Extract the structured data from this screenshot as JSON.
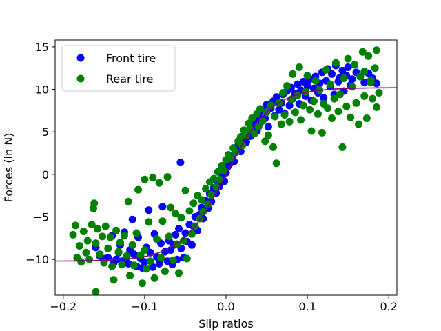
{
  "chart_data": {
    "type": "scatter",
    "title": "",
    "xlabel": "Slip ratios",
    "ylabel": "Forces (in N)",
    "xlim": [
      -0.21,
      0.21
    ],
    "ylim": [
      -14.2,
      15.8
    ],
    "xticks": [
      -0.2,
      -0.1,
      0.0,
      0.1,
      0.2
    ],
    "xtick_labels": [
      "−0.2",
      "−0.1",
      "0.0",
      "0.1",
      "0.2"
    ],
    "yticks": [
      -10,
      -5,
      0,
      5,
      10,
      15
    ],
    "ytick_labels": [
      "−10",
      "−5",
      "0",
      "5",
      "10",
      "15"
    ],
    "grid": false,
    "legend": {
      "position": "top-left"
    },
    "series": [
      {
        "name": "Front tire",
        "color": "#0000ff",
        "marker": "circle",
        "points": [
          [
            -0.16,
            -8.6
          ],
          [
            -0.155,
            -9.6
          ],
          [
            -0.15,
            -10.1
          ],
          [
            -0.148,
            -9.9
          ],
          [
            -0.145,
            -9.8
          ],
          [
            -0.14,
            -7.2
          ],
          [
            -0.138,
            -10.4
          ],
          [
            -0.135,
            -10.0
          ],
          [
            -0.132,
            -9.2
          ],
          [
            -0.13,
            -8.3
          ],
          [
            -0.128,
            -10.2
          ],
          [
            -0.125,
            -6.8
          ],
          [
            -0.122,
            -9.7
          ],
          [
            -0.12,
            -10.5
          ],
          [
            -0.118,
            -8.9
          ],
          [
            -0.115,
            -5.3
          ],
          [
            -0.113,
            -9.4
          ],
          [
            -0.11,
            -10.8
          ],
          [
            -0.108,
            -7.4
          ],
          [
            -0.105,
            -9.9
          ],
          [
            -0.103,
            -11.0
          ],
          [
            -0.1,
            -10.3
          ],
          [
            -0.098,
            -8.6
          ],
          [
            -0.095,
            -4.2
          ],
          [
            -0.093,
            -9.2
          ],
          [
            -0.09,
            -10.9
          ],
          [
            -0.088,
            -7.0
          ],
          [
            -0.085,
            -9.7
          ],
          [
            -0.082,
            -10.5
          ],
          [
            -0.08,
            -8.1
          ],
          [
            -0.078,
            -3.8
          ],
          [
            -0.075,
            -9.1
          ],
          [
            -0.072,
            -10.2
          ],
          [
            -0.07,
            -7.8
          ],
          [
            -0.068,
            -8.9
          ],
          [
            -0.066,
            -10.6
          ],
          [
            -0.064,
            -8.3
          ],
          [
            -0.062,
            -7.1
          ],
          [
            -0.06,
            -10.0
          ],
          [
            -0.058,
            -6.4
          ],
          [
            -0.056,
            1.4
          ],
          [
            -0.055,
            -8.7
          ],
          [
            -0.052,
            -9.8
          ],
          [
            -0.05,
            -6.9
          ],
          [
            -0.048,
            -7.9
          ],
          [
            -0.045,
            -5.9
          ],
          [
            -0.042,
            -8.3
          ],
          [
            -0.04,
            -6.1
          ],
          [
            -0.038,
            -5.0
          ],
          [
            -0.035,
            -6.6
          ],
          [
            -0.032,
            -4.7
          ],
          [
            -0.03,
            -3.9
          ],
          [
            -0.028,
            -5.2
          ],
          [
            -0.025,
            -3.1
          ],
          [
            -0.022,
            -4.0
          ],
          [
            -0.02,
            -2.3
          ],
          [
            -0.018,
            -3.2
          ],
          [
            -0.015,
            -1.6
          ],
          [
            -0.012,
            -2.2
          ],
          [
            -0.01,
            -0.9
          ],
          [
            -0.008,
            -1.4
          ],
          [
            -0.005,
            -0.3
          ],
          [
            -0.002,
            -0.8
          ],
          [
            0.0,
            0.2
          ],
          [
            0.002,
            0.9
          ],
          [
            0.005,
            1.3
          ],
          [
            0.008,
            2.1
          ],
          [
            0.01,
            1.5
          ],
          [
            0.012,
            2.9
          ],
          [
            0.015,
            3.4
          ],
          [
            0.018,
            2.7
          ],
          [
            0.02,
            4.1
          ],
          [
            0.022,
            4.6
          ],
          [
            0.025,
            3.8
          ],
          [
            0.028,
            5.2
          ],
          [
            0.03,
            4.5
          ],
          [
            0.032,
            5.8
          ],
          [
            0.035,
            6.4
          ],
          [
            0.038,
            5.1
          ],
          [
            0.04,
            7.0
          ],
          [
            0.042,
            6.1
          ],
          [
            0.045,
            7.5
          ],
          [
            0.048,
            6.6
          ],
          [
            0.05,
            8.2
          ],
          [
            0.052,
            5.6
          ],
          [
            0.055,
            7.8
          ],
          [
            0.058,
            8.6
          ],
          [
            0.06,
            6.9
          ],
          [
            0.062,
            9.1
          ],
          [
            0.065,
            7.6
          ],
          [
            0.068,
            8.4
          ],
          [
            0.07,
            9.4
          ],
          [
            0.072,
            7.2
          ],
          [
            0.075,
            9.8
          ],
          [
            0.078,
            8.1
          ],
          [
            0.08,
            10.2
          ],
          [
            0.082,
            8.9
          ],
          [
            0.085,
            9.5
          ],
          [
            0.088,
            10.6
          ],
          [
            0.09,
            8.3
          ],
          [
            0.092,
            9.9
          ],
          [
            0.095,
            10.9
          ],
          [
            0.098,
            9.2
          ],
          [
            0.1,
            10.4
          ],
          [
            0.103,
            11.2
          ],
          [
            0.105,
            8.7
          ],
          [
            0.108,
            10.1
          ],
          [
            0.11,
            11.5
          ],
          [
            0.113,
            9.6
          ],
          [
            0.115,
            10.7
          ],
          [
            0.118,
            12.0
          ],
          [
            0.12,
            9.0
          ],
          [
            0.123,
            11.0
          ],
          [
            0.125,
            12.4
          ],
          [
            0.128,
            10.3
          ],
          [
            0.13,
            11.8
          ],
          [
            0.133,
            9.4
          ],
          [
            0.135,
            12.8
          ],
          [
            0.138,
            10.9
          ],
          [
            0.14,
            11.4
          ],
          [
            0.143,
            12.2
          ],
          [
            0.145,
            9.8
          ],
          [
            0.148,
            11.6
          ],
          [
            0.15,
            12.6
          ],
          [
            0.153,
            10.5
          ],
          [
            0.155,
            11.2
          ],
          [
            0.16,
            12.0
          ],
          [
            0.165,
            11.5
          ],
          [
            0.17,
            10.8
          ],
          [
            0.175,
            11.9
          ],
          [
            0.18,
            11.3
          ],
          [
            0.185,
            10.7
          ]
        ]
      },
      {
        "name": "Rear tire",
        "color": "#008000",
        "marker": "circle",
        "points": [
          [
            -0.188,
            -7.1
          ],
          [
            -0.185,
            -6.0
          ],
          [
            -0.183,
            -9.8
          ],
          [
            -0.18,
            -8.4
          ],
          [
            -0.178,
            -10.3
          ],
          [
            -0.175,
            -6.7
          ],
          [
            -0.172,
            -9.2
          ],
          [
            -0.17,
            -7.8
          ],
          [
            -0.168,
            -10.0
          ],
          [
            -0.165,
            -5.9
          ],
          [
            -0.163,
            -4.0
          ],
          [
            -0.162,
            -3.4
          ],
          [
            -0.16,
            -8.1
          ],
          [
            -0.16,
            -13.8
          ],
          [
            -0.158,
            -6.4
          ],
          [
            -0.155,
            -9.4
          ],
          [
            -0.152,
            -7.3
          ],
          [
            -0.15,
            -10.4
          ],
          [
            -0.148,
            -6.1
          ],
          [
            -0.145,
            -8.7
          ],
          [
            -0.142,
            -7.4
          ],
          [
            -0.14,
            -10.8
          ],
          [
            -0.138,
            -12.4
          ],
          [
            -0.135,
            -6.6
          ],
          [
            -0.132,
            -9.1
          ],
          [
            -0.13,
            -8.0
          ],
          [
            -0.128,
            -10.6
          ],
          [
            -0.125,
            -7.2
          ],
          [
            -0.122,
            -9.6
          ],
          [
            -0.12,
            -3.2
          ],
          [
            -0.118,
            -11.9
          ],
          [
            -0.115,
            -8.3
          ],
          [
            -0.113,
            -10.7
          ],
          [
            -0.11,
            -6.9
          ],
          [
            -0.108,
            -1.8
          ],
          [
            -0.105,
            -9.5
          ],
          [
            -0.103,
            -12.8
          ],
          [
            -0.1,
            -0.6
          ],
          [
            -0.1,
            -8.9
          ],
          [
            -0.098,
            -11.1
          ],
          [
            -0.095,
            -5.6
          ],
          [
            -0.093,
            -10.2
          ],
          [
            -0.09,
            -0.4
          ],
          [
            -0.088,
            -12.2
          ],
          [
            -0.085,
            -7.6
          ],
          [
            -0.082,
            -1.0
          ],
          [
            -0.08,
            -9.8
          ],
          [
            -0.078,
            -5.5
          ],
          [
            -0.075,
            -11.4
          ],
          [
            -0.072,
            -0.3
          ],
          [
            -0.07,
            -7.3
          ],
          [
            -0.068,
            -3.9
          ],
          [
            -0.065,
            -10.1
          ],
          [
            -0.062,
            -4.6
          ],
          [
            -0.06,
            -8.2
          ],
          [
            -0.058,
            -11.6
          ],
          [
            -0.055,
            -5.1
          ],
          [
            -0.052,
            -7.8
          ],
          [
            -0.05,
            -1.9
          ],
          [
            -0.048,
            -9.9
          ],
          [
            -0.045,
            -4.3
          ],
          [
            -0.042,
            -7.0
          ],
          [
            -0.04,
            -3.4
          ],
          [
            -0.038,
            -6.1
          ],
          [
            -0.035,
            -2.5
          ],
          [
            -0.032,
            -5.2
          ],
          [
            -0.03,
            -3.0
          ],
          [
            -0.028,
            -4.4
          ],
          [
            -0.025,
            -1.7
          ],
          [
            -0.022,
            -3.5
          ],
          [
            -0.02,
            -0.9
          ],
          [
            -0.018,
            -2.4
          ],
          [
            -0.015,
            -0.5
          ],
          [
            -0.012,
            -1.5
          ],
          [
            -0.01,
            0.3
          ],
          [
            -0.008,
            -0.6
          ],
          [
            -0.005,
            1.0
          ],
          [
            -0.002,
            0.4
          ],
          [
            0.0,
            1.7
          ],
          [
            0.003,
            2.3
          ],
          [
            0.006,
            1.9
          ],
          [
            0.009,
            3.1
          ],
          [
            0.012,
            2.6
          ],
          [
            0.015,
            3.9
          ],
          [
            0.018,
            4.4
          ],
          [
            0.02,
            3.4
          ],
          [
            0.022,
            5.2
          ],
          [
            0.025,
            4.6
          ],
          [
            0.028,
            6.0
          ],
          [
            0.03,
            5.3
          ],
          [
            0.032,
            6.6
          ],
          [
            0.035,
            4.8
          ],
          [
            0.038,
            7.1
          ],
          [
            0.04,
            5.6
          ],
          [
            0.042,
            7.7
          ],
          [
            0.045,
            6.3
          ],
          [
            0.048,
            3.9
          ],
          [
            0.05,
            7.3
          ],
          [
            0.052,
            4.6
          ],
          [
            0.055,
            8.1
          ],
          [
            0.058,
            3.2
          ],
          [
            0.06,
            6.8
          ],
          [
            0.062,
            1.3
          ],
          [
            0.065,
            8.4
          ],
          [
            0.068,
            5.9
          ],
          [
            0.07,
            9.6
          ],
          [
            0.072,
            7.0
          ],
          [
            0.075,
            10.4
          ],
          [
            0.078,
            6.2
          ],
          [
            0.08,
            8.8
          ],
          [
            0.082,
            11.8
          ],
          [
            0.085,
            7.3
          ],
          [
            0.088,
            9.3
          ],
          [
            0.09,
            12.6
          ],
          [
            0.092,
            6.4
          ],
          [
            0.095,
            8.1
          ],
          [
            0.098,
            9.7
          ],
          [
            0.1,
            11.6
          ],
          [
            0.103,
            7.6
          ],
          [
            0.105,
            5.1
          ],
          [
            0.108,
            8.6
          ],
          [
            0.11,
            11.0
          ],
          [
            0.113,
            7.1
          ],
          [
            0.115,
            9.9
          ],
          [
            0.118,
            4.9
          ],
          [
            0.12,
            8.3
          ],
          [
            0.123,
            12.3
          ],
          [
            0.125,
            7.8
          ],
          [
            0.128,
            10.6
          ],
          [
            0.13,
            6.6
          ],
          [
            0.133,
            8.9
          ],
          [
            0.135,
            13.1
          ],
          [
            0.138,
            7.4
          ],
          [
            0.14,
            9.4
          ],
          [
            0.143,
            3.2
          ],
          [
            0.145,
            11.3
          ],
          [
            0.148,
            8.0
          ],
          [
            0.15,
            13.6
          ],
          [
            0.153,
            6.7
          ],
          [
            0.155,
            10.3
          ],
          [
            0.158,
            12.9
          ],
          [
            0.16,
            8.4
          ],
          [
            0.163,
            5.9
          ],
          [
            0.165,
            11.5
          ],
          [
            0.168,
            14.4
          ],
          [
            0.17,
            9.2
          ],
          [
            0.173,
            6.6
          ],
          [
            0.175,
            13.9
          ],
          [
            0.178,
            10.8
          ],
          [
            0.18,
            8.9
          ],
          [
            0.183,
            12.5
          ],
          [
            0.185,
            14.6
          ],
          [
            0.188,
            9.6
          ],
          [
            0.185,
            7.9
          ],
          [
            0.178,
            11.1
          ],
          [
            0.17,
            12.1
          ]
        ]
      },
      {
        "name": "",
        "color": "#800080",
        "marker": "none",
        "curve": {
          "model": "tanh",
          "amplitude": 10.2,
          "rate": 18,
          "x_start": -0.21,
          "x_end": 0.21
        }
      }
    ]
  }
}
